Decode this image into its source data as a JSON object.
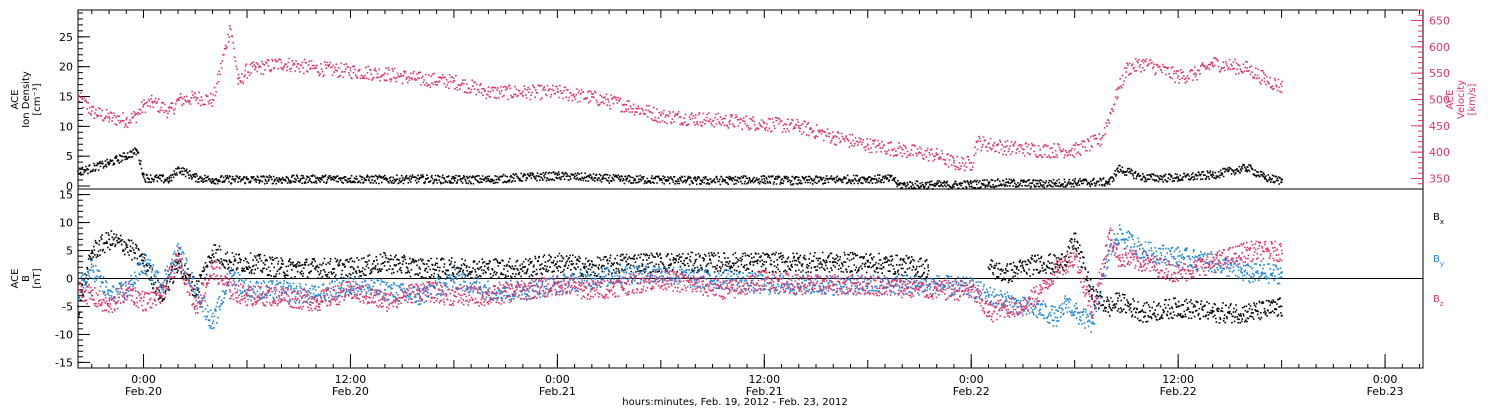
{
  "colors": {
    "axis": "#000000",
    "density": "#000000",
    "velocity": "#e0346a",
    "bx": "#000000",
    "by": "#1f86d6",
    "bz": "#e0346a"
  },
  "xaxis": {
    "footer": "hours:minutes, Feb. 19, 2012 - Feb. 23, 2012",
    "ticks": [
      {
        "hour": 24,
        "time": "0:00",
        "date": "Feb.20"
      },
      {
        "hour": 36,
        "time": "12:00",
        "date": "Feb.20"
      },
      {
        "hour": 48,
        "time": "0:00",
        "date": "Feb.21"
      },
      {
        "hour": 60,
        "time": "12:00",
        "date": "Feb.21"
      },
      {
        "hour": 72,
        "time": "0:00",
        "date": "Feb.22"
      },
      {
        "hour": 84,
        "time": "12:00",
        "date": "Feb.22"
      },
      {
        "hour": 96,
        "time": "0:00",
        "date": "Feb.23"
      }
    ],
    "range_hours": [
      20.2,
      98.2
    ]
  },
  "chart_data": [
    {
      "type": "scatter",
      "panel": "top",
      "ylabel_left": [
        "ACE",
        "Ion Density",
        "[cm⁻³]"
      ],
      "ylabel_right": [
        "ACE",
        "Velocity",
        "[km/s]"
      ],
      "ylim_left": [
        -0.5,
        29.5
      ],
      "ylim_right": [
        330,
        670
      ],
      "left_ticks": [
        0,
        5,
        10,
        15,
        20,
        25
      ],
      "right_ticks": [
        350,
        400,
        450,
        500,
        550,
        600,
        650
      ],
      "series": [
        {
          "axis": "left",
          "x": [
            20.2,
            22.0,
            23.6,
            24.0,
            25.5,
            26.0,
            27.0,
            28.0,
            30.0,
            32.0,
            34.0,
            36.0,
            38.0,
            40.0,
            42.0,
            44.0,
            46.0,
            48.0,
            50.0,
            52.0,
            54.0,
            56.0,
            58.0,
            60.0,
            62.0,
            64.0,
            66.0,
            67.5,
            67.7,
            70.0,
            71.0,
            72.0,
            73.0,
            74.0,
            76.0,
            78.0,
            80.0,
            80.5,
            82.0,
            84.0,
            86.0,
            88.0,
            89.0,
            90.0
          ],
          "y": [
            2.5,
            4.0,
            6.0,
            1.5,
            1.2,
            3.0,
            1.5,
            1.2,
            1.2,
            1.2,
            1.3,
            1.3,
            1.2,
            1.3,
            1.2,
            1.2,
            1.6,
            1.8,
            1.5,
            1.2,
            1.2,
            1.0,
            1.1,
            1.2,
            1.0,
            1.2,
            1.3,
            1.3,
            0.3,
            0.3,
            0.3,
            0.4,
            0.6,
            0.6,
            0.5,
            0.7,
            0.8,
            3.0,
            1.5,
            1.5,
            2.0,
            3.2,
            1.5,
            1.0
          ]
        },
        {
          "axis": "right",
          "name": "Velocity",
          "x": [
            20.2,
            21.0,
            22.0,
            23.0,
            23.5,
            24.0,
            24.5,
            25.5,
            26.0,
            27.0,
            28.0,
            29.0,
            29.5,
            29.9,
            30.5,
            32.0,
            34.0,
            36.0,
            38.0,
            40.0,
            42.0,
            44.0,
            46.0,
            48.0,
            50.0,
            52.0,
            54.0,
            56.0,
            58.0,
            60.0,
            62.0,
            64.0,
            66.0,
            68.0,
            70.0,
            71.0,
            72.0,
            72.3,
            74.0,
            76.0,
            78.0,
            79.5,
            80.5,
            81.0,
            82.0,
            84.0,
            85.0,
            86.0,
            88.0,
            89.0,
            90.0
          ],
          "y": [
            505,
            478,
            467,
            462,
            470,
            490,
            496,
            478,
            500,
            505,
            500,
            640,
            530,
            555,
            560,
            570,
            560,
            555,
            550,
            540,
            535,
            515,
            515,
            515,
            505,
            490,
            470,
            465,
            460,
            455,
            450,
            430,
            415,
            405,
            395,
            380,
            380,
            420,
            410,
            405,
            405,
            425,
            520,
            560,
            570,
            545,
            550,
            570,
            560,
            540,
            525
          ]
        }
      ]
    },
    {
      "type": "scatter",
      "panel": "bottom",
      "ylabel_left": [
        "ACE",
        "B",
        "[nT]"
      ],
      "ylim": [
        -16,
        16
      ],
      "left_ticks": [
        -15,
        -10,
        -5,
        0,
        5,
        10,
        15
      ],
      "zero_line": true,
      "series": [
        {
          "name": "Bx",
          "x": [
            20.2,
            21.0,
            22.0,
            23.0,
            24.0,
            25.0,
            26.0,
            27.0,
            28.0,
            29.0,
            30.0,
            32.0,
            34.0,
            36.0,
            38.0,
            40.0,
            42.0,
            44.0,
            46.0,
            48.0,
            50.0,
            52.0,
            54.0,
            56.0,
            58.0,
            60.0,
            62.0,
            64.0,
            66.0,
            68.0,
            69.5,
            70.0,
            72.0,
            73.0,
            74.0,
            75.0,
            76.0,
            77.0,
            77.5,
            78.0,
            79.0,
            80.0,
            80.5,
            82.0,
            84.0,
            86.0,
            88.0,
            90.0
          ],
          "y": [
            -5,
            5,
            7,
            6,
            3,
            -3,
            3,
            -2,
            5,
            3,
            3,
            2,
            2,
            2,
            3,
            2,
            2,
            2,
            2,
            3,
            2,
            3,
            3,
            3,
            3,
            3,
            3,
            3,
            3,
            2.5,
            2,
            null,
            null,
            2,
            1,
            2,
            3,
            2.5,
            4,
            7,
            -3,
            -5,
            -4,
            -6,
            -5,
            -6,
            -6,
            -5
          ]
        },
        {
          "name": "By",
          "x": [
            20.2,
            21.0,
            22.0,
            23.0,
            24.0,
            25.0,
            26.0,
            27.0,
            28.0,
            29.0,
            30.0,
            32.0,
            34.0,
            36.0,
            38.0,
            40.0,
            42.0,
            44.0,
            46.0,
            48.0,
            50.0,
            52.0,
            54.0,
            56.0,
            58.0,
            60.0,
            62.0,
            64.0,
            66.0,
            68.0,
            70.0,
            72.0,
            73.0,
            74.0,
            75.0,
            76.0,
            77.0,
            77.5,
            78.0,
            79.0,
            80.0,
            80.5,
            82.0,
            84.0,
            86.0,
            88.0,
            90.0
          ],
          "y": [
            -2,
            2,
            -3,
            -2,
            3,
            -1,
            5,
            -2,
            -8,
            1,
            -2,
            -2,
            -3,
            -1,
            -2,
            -3,
            0,
            -2,
            -2,
            -1,
            0,
            1,
            1,
            0,
            0,
            -1,
            -1,
            -1,
            -1,
            -1,
            -1,
            -1.5,
            -3,
            -4,
            -5,
            -5.5,
            -7,
            -4,
            -6,
            -8,
            5,
            8,
            5,
            4,
            3,
            1,
            1
          ]
        },
        {
          "name": "Bz",
          "x": [
            20.2,
            21.0,
            22.0,
            23.0,
            24.0,
            25.0,
            26.0,
            27.0,
            28.0,
            29.0,
            30.0,
            32.0,
            34.0,
            36.0,
            38.0,
            40.0,
            42.0,
            44.0,
            46.0,
            48.0,
            50.0,
            52.0,
            54.0,
            56.0,
            58.0,
            60.0,
            62.0,
            64.0,
            66.0,
            68.0,
            70.0,
            72.0,
            73.0,
            74.0,
            75.0,
            76.0,
            77.0,
            78.0,
            79.0,
            80.0,
            80.5,
            82.0,
            84.0,
            86.0,
            88.0,
            90.0
          ],
          "y": [
            -2,
            -3,
            -5,
            -2,
            -4,
            -3,
            4,
            -5,
            2,
            -2,
            -3,
            -3,
            -4,
            -2,
            -4,
            -2,
            -3,
            -3,
            -2,
            -1,
            -2,
            -1,
            0,
            -1,
            -2,
            0,
            -1,
            -1,
            -1,
            -1.5,
            -2,
            -2,
            -6,
            -5,
            -5,
            -2,
            2,
            4,
            -6,
            8,
            4,
            3,
            1,
            3,
            5,
            5
          ]
        }
      ],
      "labels": [
        {
          "text": "B",
          "sub": "x",
          "series": "Bx"
        },
        {
          "text": "B",
          "sub": "y",
          "series": "By"
        },
        {
          "text": "B",
          "sub": "z",
          "series": "Bz"
        }
      ]
    }
  ]
}
